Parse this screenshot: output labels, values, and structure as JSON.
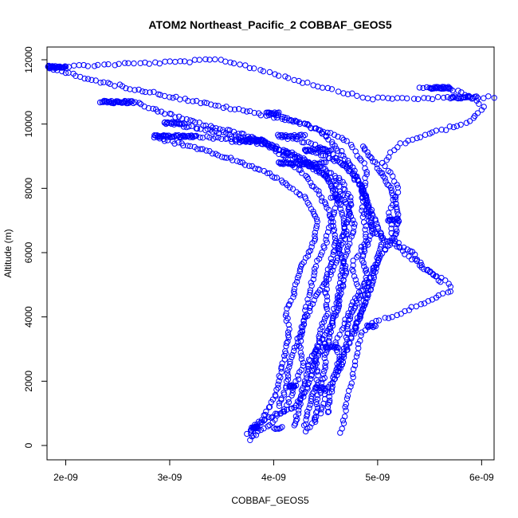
{
  "chart_data": {
    "type": "scatter",
    "title": "ATOM2 Northeast_Pacific_2 COBBAF_GEOS5",
    "xlabel": "COBBAF_GEOS5",
    "ylabel": "Altitude (m)",
    "xlim": [
      1.82e-09,
      6.12e-09
    ],
    "ylim": [
      0,
      12000
    ],
    "x_ticks": [
      {
        "value": 2e-09,
        "label": "2e-09"
      },
      {
        "value": 3e-09,
        "label": "3e-09"
      },
      {
        "value": 4e-09,
        "label": "4e-09"
      },
      {
        "value": 5e-09,
        "label": "5e-09"
      },
      {
        "value": 6e-09,
        "label": "6e-09"
      }
    ],
    "y_ticks": [
      {
        "value": 0,
        "label": "0"
      },
      {
        "value": 2000,
        "label": "2000"
      },
      {
        "value": 4000,
        "label": "4000"
      },
      {
        "value": 6000,
        "label": "6000"
      },
      {
        "value": 8000,
        "label": "8000"
      },
      {
        "value": 10000,
        "label": "10000"
      },
      {
        "value": 12000,
        "label": "12000"
      }
    ],
    "marker": "open-circle",
    "marker_color": "#0000ff",
    "grid": false,
    "legend": "none",
    "series_paths": [
      {
        "points": [
          [
            1.83e-09,
            11780
          ],
          [
            2.2e-09,
            11820
          ],
          [
            2.6e-09,
            11880
          ],
          [
            3e-09,
            11920
          ],
          [
            3.35e-09,
            11980
          ],
          [
            3.5e-09,
            12000
          ],
          [
            3.8e-09,
            11750
          ],
          [
            4.3e-09,
            11300
          ],
          [
            4.9e-09,
            10800
          ],
          [
            5.5e-09,
            10800
          ],
          [
            6.12e-09,
            10850
          ]
        ],
        "n": 90
      },
      {
        "points": [
          [
            1.85e-09,
            11750
          ],
          [
            2.2e-09,
            11400
          ],
          [
            2.8e-09,
            11000
          ],
          [
            3.4e-09,
            10600
          ],
          [
            3.9e-09,
            10300
          ],
          [
            4.3e-09,
            10000
          ],
          [
            4.7e-09,
            9500
          ],
          [
            4.9e-09,
            8600
          ],
          [
            4.85e-09,
            7500
          ],
          [
            4.9e-09,
            6400
          ],
          [
            4.75e-09,
            5600
          ],
          [
            4.82e-09,
            4800
          ],
          [
            4.7e-09,
            4000
          ],
          [
            4.6e-09,
            3200
          ],
          [
            4.65e-09,
            2400
          ],
          [
            4.5e-09,
            1700
          ],
          [
            4.45e-09,
            1000
          ],
          [
            4.3e-09,
            400
          ]
        ],
        "n": 160
      },
      {
        "points": [
          [
            5.4e-09,
            11100
          ],
          [
            5.6e-09,
            11150
          ],
          [
            5.75e-09,
            11050
          ],
          [
            5.9e-09,
            10800
          ],
          [
            6.02e-09,
            10550
          ],
          [
            5.9e-09,
            10100
          ],
          [
            5.5e-09,
            9700
          ],
          [
            5.2e-09,
            9350
          ],
          [
            5.05e-09,
            8800
          ],
          [
            5.2e-09,
            8000
          ],
          [
            5.1e-09,
            7200
          ],
          [
            5.15e-09,
            6500
          ],
          [
            5.25e-09,
            6000
          ],
          [
            5.45e-09,
            5500
          ],
          [
            5.7e-09,
            5000
          ],
          [
            5.7e-09,
            4800
          ],
          [
            5.5e-09,
            4500
          ],
          [
            5.2e-09,
            4100
          ],
          [
            4.95e-09,
            3800
          ],
          [
            4.85e-09,
            3500
          ],
          [
            4.8e-09,
            2800
          ],
          [
            4.75e-09,
            2000
          ],
          [
            4.7e-09,
            1200
          ],
          [
            4.65e-09,
            400
          ]
        ],
        "n": 130
      },
      {
        "points": [
          [
            2.33e-09,
            10700
          ],
          [
            2.65e-09,
            10680
          ],
          [
            2.9e-09,
            10400
          ],
          [
            3.3e-09,
            10000
          ],
          [
            3.8e-09,
            9600
          ],
          [
            4.2e-09,
            9000
          ],
          [
            4.5e-09,
            8400
          ],
          [
            4.62e-09,
            7700
          ],
          [
            4.55e-09,
            7000
          ],
          [
            4.5e-09,
            6300
          ],
          [
            4.4e-09,
            5500
          ],
          [
            4.35e-09,
            4800
          ],
          [
            4.3e-09,
            4000
          ],
          [
            4.25e-09,
            3200
          ],
          [
            4.28e-09,
            2500
          ],
          [
            4.2e-09,
            1800
          ],
          [
            4.1e-09,
            1100
          ],
          [
            3.95e-09,
            600
          ],
          [
            3.8e-09,
            300
          ]
        ],
        "n": 150
      },
      {
        "points": [
          [
            2.85e-09,
            9620
          ],
          [
            3.2e-09,
            9620
          ],
          [
            3.5e-09,
            9550
          ],
          [
            3.9e-09,
            9450
          ],
          [
            4.1e-09,
            9000
          ],
          [
            4.3e-09,
            8400
          ],
          [
            4.45e-09,
            7800
          ],
          [
            4.55e-09,
            7100
          ],
          [
            4.6e-09,
            6400
          ],
          [
            4.55e-09,
            5700
          ],
          [
            4.5e-09,
            5000
          ],
          [
            4.52e-09,
            4200
          ],
          [
            4.45e-09,
            3500
          ],
          [
            4.4e-09,
            2800
          ],
          [
            4.42e-09,
            2000
          ],
          [
            4.35e-09,
            1300
          ],
          [
            4.3e-09,
            600
          ]
        ],
        "n": 140
      },
      {
        "points": [
          [
            2.9e-09,
            9550
          ],
          [
            3.3e-09,
            9200
          ],
          [
            3.7e-09,
            8800
          ],
          [
            4.05e-09,
            8300
          ],
          [
            4.3e-09,
            7700
          ],
          [
            4.42e-09,
            7000
          ],
          [
            4.38e-09,
            6200
          ],
          [
            4.25e-09,
            5500
          ],
          [
            4.2e-09,
            4800
          ],
          [
            4.12e-09,
            4100
          ],
          [
            4.15e-09,
            3400
          ],
          [
            4.1e-09,
            2700
          ],
          [
            4.05e-09,
            2000
          ],
          [
            4e-09,
            1400
          ],
          [
            3.9e-09,
            900
          ],
          [
            3.75e-09,
            400
          ]
        ],
        "n": 130
      },
      {
        "points": [
          [
            2.95e-09,
            10050
          ],
          [
            3.4e-09,
            9800
          ],
          [
            3.8e-09,
            9500
          ],
          [
            4.1e-09,
            9150
          ],
          [
            4.35e-09,
            8700
          ],
          [
            4.6e-09,
            8200
          ],
          [
            4.7e-09,
            7500
          ],
          [
            4.78e-09,
            6800
          ],
          [
            4.7e-09,
            6000
          ],
          [
            4.65e-09,
            5200
          ],
          [
            4.6e-09,
            4400
          ],
          [
            4.55e-09,
            3600
          ],
          [
            4.5e-09,
            2800
          ],
          [
            4.48e-09,
            2100
          ],
          [
            4.42e-09,
            1400
          ],
          [
            4.4e-09,
            700
          ]
        ],
        "n": 140
      },
      {
        "points": [
          [
            3.95e-09,
            10350
          ],
          [
            4.2e-09,
            10100
          ],
          [
            4.45e-09,
            9800
          ],
          [
            4.6e-09,
            9300
          ],
          [
            4.75e-09,
            8700
          ],
          [
            4.85e-09,
            8000
          ],
          [
            4.92e-09,
            7300
          ],
          [
            4.95e-09,
            6600
          ],
          [
            4.85e-09,
            5900
          ],
          [
            4.9e-09,
            5200
          ],
          [
            4.8e-09,
            4500
          ],
          [
            4.72e-09,
            3800
          ],
          [
            4.7e-09,
            3100
          ],
          [
            4.6e-09,
            2400
          ],
          [
            4.55e-09,
            1700
          ],
          [
            4.52e-09,
            1000
          ]
        ],
        "n": 130
      },
      {
        "points": [
          [
            4.05e-09,
            9650
          ],
          [
            4.35e-09,
            9400
          ],
          [
            4.55e-09,
            9100
          ],
          [
            4.72e-09,
            8600
          ],
          [
            4.85e-09,
            8000
          ],
          [
            4.9e-09,
            7300
          ],
          [
            4.95e-09,
            6700
          ],
          [
            5.1e-09,
            6300
          ],
          [
            5.3e-09,
            6100
          ],
          [
            5.45e-09,
            5500
          ],
          [
            5.6e-09,
            5100
          ]
        ],
        "n": 70
      },
      {
        "points": [
          [
            4.05e-09,
            8800
          ],
          [
            4.3e-09,
            8750
          ],
          [
            4.5e-09,
            8600
          ],
          [
            4.65e-09,
            8200
          ],
          [
            4.75e-09,
            7600
          ],
          [
            4.7e-09,
            6900
          ],
          [
            4.62e-09,
            6200
          ],
          [
            4.7e-09,
            5500
          ],
          [
            4.65e-09,
            4800
          ],
          [
            4.6e-09,
            4100
          ],
          [
            4.48e-09,
            3400
          ],
          [
            4.35e-09,
            2700
          ],
          [
            4.3e-09,
            2000
          ],
          [
            4.25e-09,
            1300
          ],
          [
            4.2e-09,
            600
          ]
        ],
        "n": 120
      },
      {
        "points": [
          [
            4.3e-09,
            9200
          ],
          [
            4.5e-09,
            9000
          ],
          [
            4.7e-09,
            8700
          ],
          [
            4.82e-09,
            8200
          ],
          [
            4.9e-09,
            7600
          ],
          [
            4.98e-09,
            7000
          ],
          [
            5.05e-09,
            6400
          ],
          [
            5e-09,
            5800
          ],
          [
            4.95e-09,
            5100
          ],
          [
            4.88e-09,
            4400
          ],
          [
            4.8e-09,
            3700
          ],
          [
            4.7e-09,
            3000
          ],
          [
            4.62e-09,
            2300
          ]
        ],
        "n": 100
      },
      {
        "points": [
          [
            3.6e-09,
            9480
          ],
          [
            3.9e-09,
            9400
          ],
          [
            4.2e-09,
            9100
          ],
          [
            4.4e-09,
            8700
          ],
          [
            4.55e-09,
            8100
          ],
          [
            4.65e-09,
            7400
          ],
          [
            4.7e-09,
            6600
          ],
          [
            4.62e-09,
            5900
          ],
          [
            4.55e-09,
            5300
          ],
          [
            4.4e-09,
            4600
          ],
          [
            4.3e-09,
            3900
          ],
          [
            4.22e-09,
            3200
          ],
          [
            4.15e-09,
            2500
          ],
          [
            4.12e-09,
            1800
          ],
          [
            4.05e-09,
            1200
          ]
        ],
        "n": 110
      },
      {
        "points": [
          [
            4.85e-09,
            9300
          ],
          [
            4.95e-09,
            8900
          ],
          [
            5.05e-09,
            8400
          ],
          [
            5.15e-09,
            7800
          ],
          [
            5.2e-09,
            7200
          ],
          [
            5.18e-09,
            6600
          ],
          [
            5.05e-09,
            6000
          ],
          [
            4.95e-09,
            5400
          ],
          [
            4.9e-09,
            4800
          ],
          [
            4.85e-09,
            4200
          ],
          [
            4.75e-09,
            3500
          ]
        ],
        "n": 80
      },
      {
        "points": [
          [
            3.78e-09,
            200
          ],
          [
            3.8e-09,
            500
          ],
          [
            3.9e-09,
            800
          ],
          [
            4.05e-09,
            1000
          ],
          [
            4.2e-09,
            1200
          ],
          [
            4.3e-09,
            1600
          ],
          [
            4.35e-09,
            2000
          ],
          [
            4.4e-09,
            2600
          ],
          [
            4.5e-09,
            3200
          ]
        ],
        "n": 50
      }
    ],
    "series_clusters": [
      {
        "x": [
          1.83e-09,
          2e-09
        ],
        "y": 11780,
        "n": 25
      },
      {
        "x": [
          2.35e-09,
          2.65e-09
        ],
        "y": 10680,
        "n": 25
      },
      {
        "x": [
          2.85e-09,
          3.25e-09
        ],
        "y": 9620,
        "n": 30
      },
      {
        "x": [
          2.95e-09,
          3.15e-09
        ],
        "y": 10030,
        "n": 14
      },
      {
        "x": [
          3.7e-09,
          3.9e-09
        ],
        "y": 9500,
        "n": 18
      },
      {
        "x": [
          3.93e-09,
          4.05e-09
        ],
        "y": 10330,
        "n": 10
      },
      {
        "x": [
          4.05e-09,
          4.3e-09
        ],
        "y": 9640,
        "n": 16
      },
      {
        "x": [
          4.05e-09,
          4.5e-09
        ],
        "y": 8780,
        "n": 30
      },
      {
        "x": [
          4.3e-09,
          4.55e-09
        ],
        "y": 9200,
        "n": 18
      },
      {
        "x": [
          5.5e-09,
          5.7e-09
        ],
        "y": 11130,
        "n": 22
      },
      {
        "x": [
          5.7e-09,
          5.95e-09
        ],
        "y": 10830,
        "n": 18
      },
      {
        "x": [
          5.1e-09,
          5.2e-09
        ],
        "y": 7020,
        "n": 10
      },
      {
        "x": [
          4.9e-09,
          4.98e-09
        ],
        "y": 3700,
        "n": 8
      },
      {
        "x": [
          4.15e-09,
          4.2e-09
        ],
        "y": 1850,
        "n": 10
      },
      {
        "x": [
          4.4e-09,
          4.5e-09
        ],
        "y": 1800,
        "n": 8
      },
      {
        "x": [
          4.5e-09,
          4.62e-09
        ],
        "y": 3050,
        "n": 10
      },
      {
        "x": [
          3.8e-09,
          3.85e-09
        ],
        "y": 550,
        "n": 8
      },
      {
        "x": [
          4e-09,
          4.08e-09
        ],
        "y": 550,
        "n": 6
      },
      {
        "x": [
          4.55e-09,
          4.65e-09
        ],
        "y": 7700,
        "n": 6
      }
    ]
  }
}
